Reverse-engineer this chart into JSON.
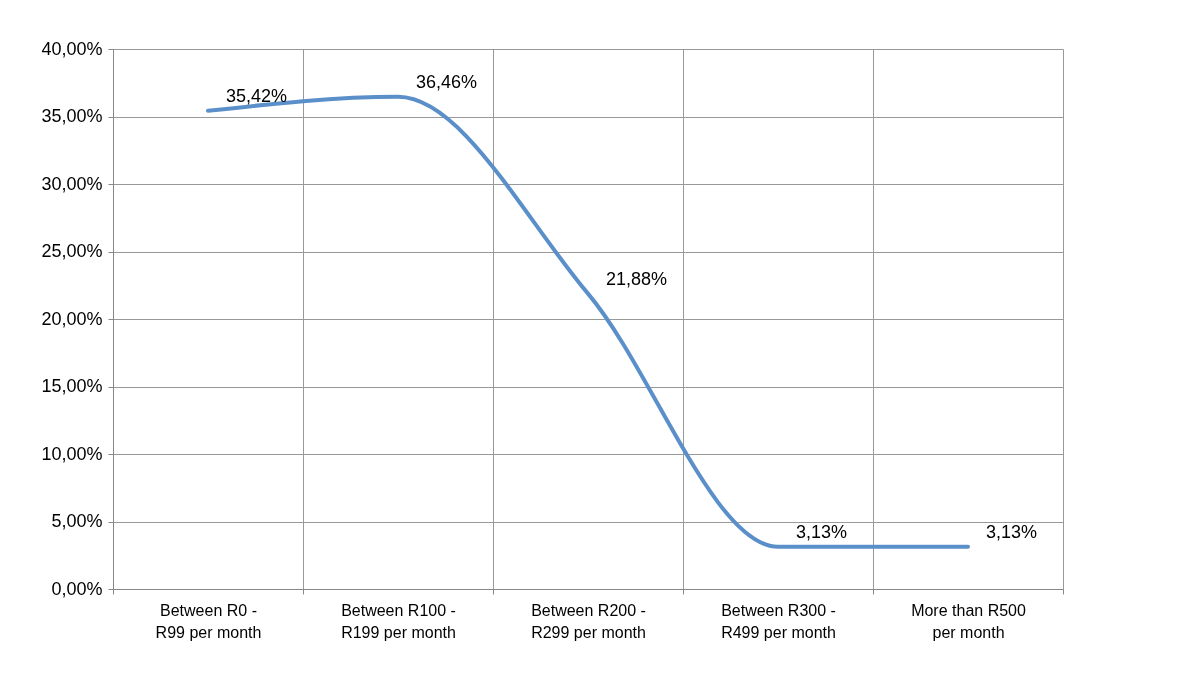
{
  "chart_data": {
    "type": "line",
    "categories": [
      "Between R0 - R99 per month",
      "Between R100 - R199 per month",
      "Between R200 - R299 per month",
      "Between R300 - R499 per month",
      "More than R500 per month"
    ],
    "series": [
      {
        "color": "#5b8fc9",
        "values": [
          35.42,
          36.46,
          21.88,
          3.13,
          3.13
        ],
        "value_labels": [
          "35,42%",
          "36,46%",
          "21,88%",
          "3,13%",
          "3,13%"
        ]
      }
    ],
    "ylim": [
      0,
      40
    ],
    "yticks": [
      {
        "value": 0,
        "label": "0,00%"
      },
      {
        "value": 5,
        "label": "5,00%"
      },
      {
        "value": 10,
        "label": "10,00%"
      },
      {
        "value": 15,
        "label": "15,00%"
      },
      {
        "value": 20,
        "label": "20,00%"
      },
      {
        "value": 25,
        "label": "25,00%"
      },
      {
        "value": 30,
        "label": "30,00%"
      },
      {
        "value": 35,
        "label": "35,00%"
      },
      {
        "value": 40,
        "label": "40,00%"
      }
    ],
    "grid": true,
    "marker": "none",
    "line_style": "solid"
  }
}
